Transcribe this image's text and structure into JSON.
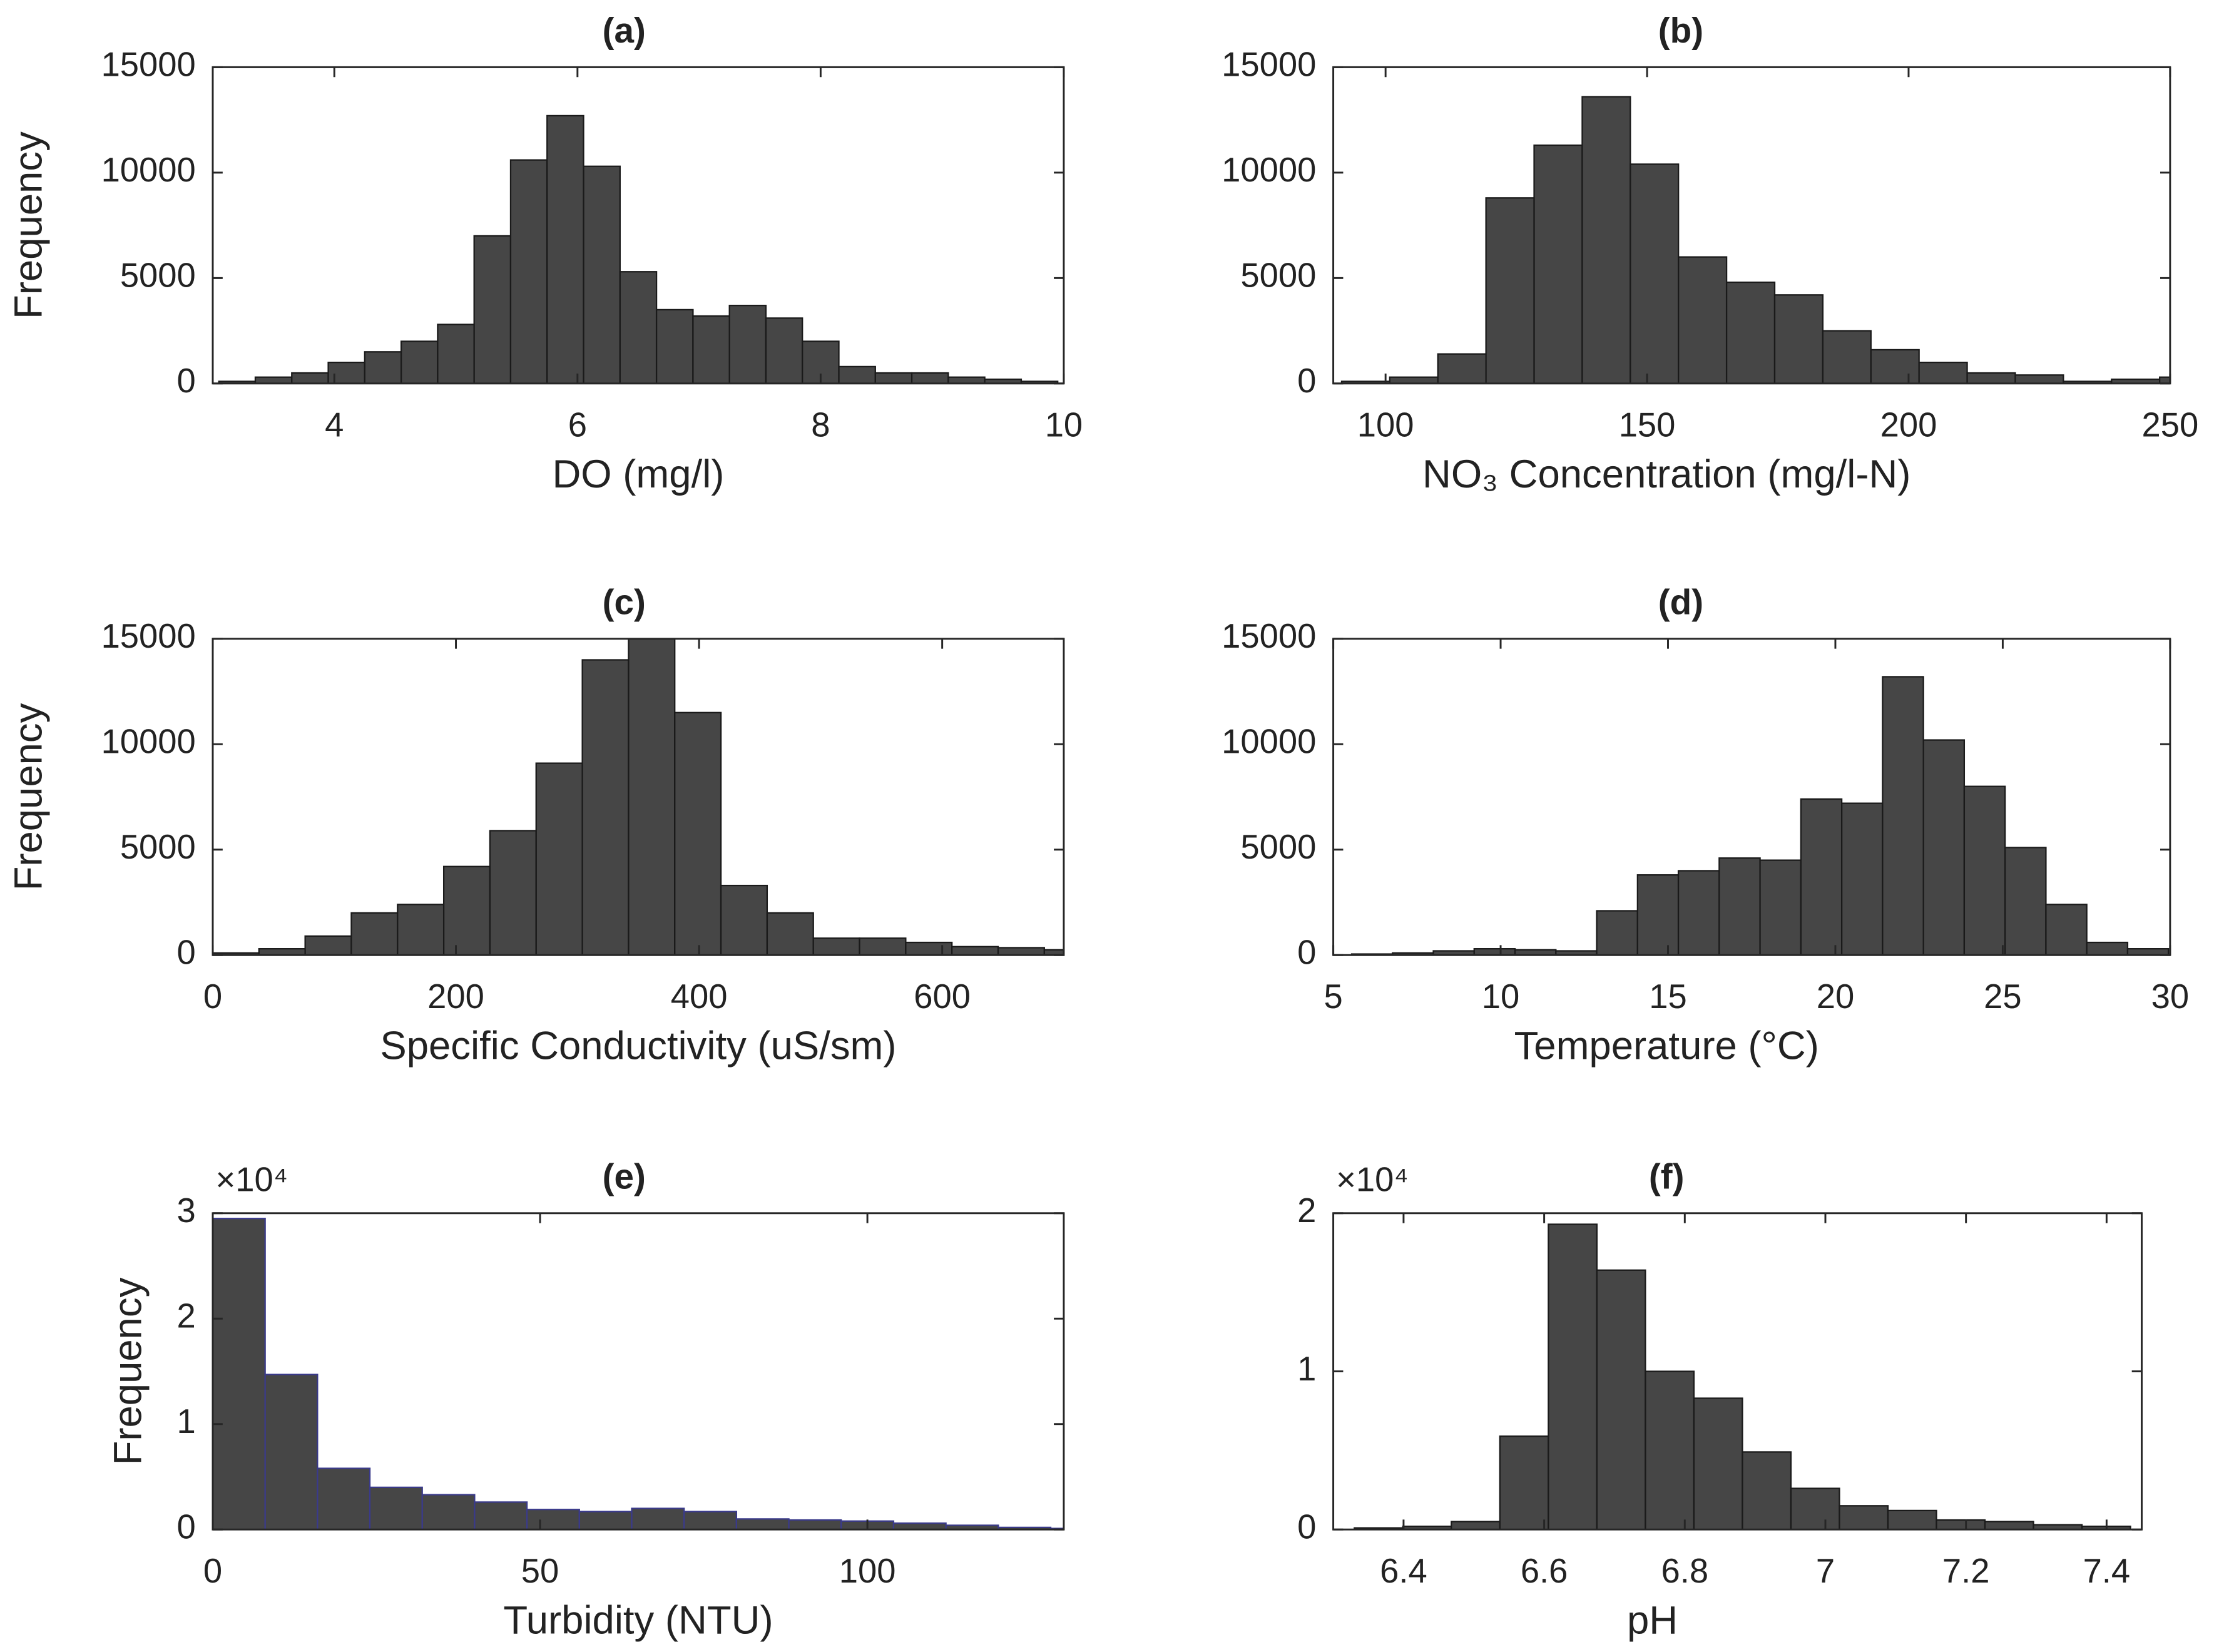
{
  "chart_data": [
    {
      "type": "histogram",
      "title": "(a)",
      "xlabel": "DO (mg/l)",
      "ylabel": "Frequency",
      "color": "#464646",
      "edge": "#1a1a1a",
      "bins": [
        3.05,
        3.35,
        3.65,
        3.95,
        4.25,
        4.55,
        4.85,
        5.15,
        5.45,
        5.75,
        6.05,
        6.35,
        6.65,
        6.95,
        7.25,
        7.55,
        7.85,
        8.15,
        8.45,
        8.75,
        9.05,
        9.35,
        9.65,
        9.95
      ],
      "values": [
        100,
        300,
        500,
        1000,
        1500,
        2000,
        2800,
        7000,
        10600,
        12700,
        10300,
        5300,
        3500,
        3200,
        3700,
        3100,
        2000,
        800,
        500,
        500,
        300,
        200,
        100
      ],
      "xlim": [
        3,
        10
      ],
      "xticks": [
        4,
        6,
        8,
        10
      ],
      "ylim": [
        0,
        15000
      ],
      "yticks": [
        0,
        5000,
        10000,
        15000
      ]
    },
    {
      "type": "histogram",
      "title": "(b)",
      "xlabel": "NO₃ Concentration (mg/l-N)",
      "color": "#464646",
      "edge": "#1a1a1a",
      "bins": [
        91.6,
        100.8,
        110,
        119.2,
        128.4,
        137.6,
        146.8,
        156,
        165.2,
        174.4,
        183.6,
        192.8,
        202,
        211.2,
        220.4,
        229.6,
        238.8,
        248,
        257.2
      ],
      "values": [
        100,
        300,
        1400,
        8800,
        11300,
        13600,
        10400,
        6000,
        4800,
        4200,
        2500,
        1600,
        1000,
        500,
        400,
        100,
        200,
        300
      ],
      "xlim": [
        90,
        250
      ],
      "xticks": [
        100,
        150,
        200,
        250
      ],
      "ylim": [
        0,
        15000
      ],
      "yticks": [
        0,
        5000,
        10000,
        15000
      ]
    },
    {
      "type": "histogram",
      "title": "(c)",
      "xlabel": "Specific Conductivity (uS/sm)",
      "ylabel": "Frequency",
      "color": "#464646",
      "edge": "#1a1a1a",
      "bins": [
        0,
        38,
        76,
        114,
        152,
        190,
        228,
        266,
        304,
        342,
        380,
        418,
        456,
        494,
        532,
        570,
        608,
        646,
        684,
        722
      ],
      "values": [
        100,
        300,
        900,
        2000,
        2400,
        4200,
        5900,
        9100,
        14000,
        15000,
        11500,
        3300,
        2000,
        800,
        800,
        600,
        400,
        350,
        250
      ],
      "xlim": [
        0,
        700
      ],
      "xticks": [
        0,
        200,
        400,
        600
      ],
      "ylim": [
        0,
        15000
      ],
      "yticks": [
        0,
        5000,
        10000,
        15000
      ]
    },
    {
      "type": "histogram",
      "title": "(d)",
      "xlabel": "Temperature (°C)",
      "color": "#464646",
      "edge": "#1a1a1a",
      "bins": [
        5.55,
        6.77,
        7.99,
        9.21,
        10.43,
        11.65,
        12.87,
        14.09,
        15.31,
        16.53,
        17.75,
        18.97,
        20.19,
        21.41,
        22.63,
        23.85,
        25.07,
        26.29,
        27.51,
        28.73,
        29.95
      ],
      "values": [
        50,
        100,
        200,
        300,
        250,
        200,
        2100,
        3800,
        4000,
        4600,
        4500,
        7400,
        7200,
        13200,
        10200,
        8000,
        5100,
        2400,
        600,
        300
      ],
      "xlim": [
        5,
        30
      ],
      "xticks": [
        5,
        10,
        15,
        20,
        25,
        30
      ],
      "ylim": [
        0,
        15000
      ],
      "yticks": [
        0,
        5000,
        10000,
        15000
      ]
    },
    {
      "type": "histogram",
      "title": "(e)",
      "xlabel": "Turbidity (NTU)",
      "ylabel": "Frequency",
      "multiplier": "×10⁴",
      "color": "#464646",
      "edge": "#3a3a8a",
      "bins": [
        0,
        8,
        16,
        24,
        32,
        40,
        48,
        56,
        64,
        72,
        80,
        88,
        96,
        104,
        112,
        120,
        128,
        136
      ],
      "values": [
        29500,
        14700,
        5800,
        4000,
        3300,
        2600,
        1900,
        1700,
        2000,
        1700,
        1000,
        900,
        800,
        600,
        400,
        200,
        100
      ],
      "xlim": [
        0,
        130
      ],
      "xticks": [
        0,
        50,
        100
      ],
      "ylim": [
        0,
        30000
      ],
      "yticks": [
        {
          "value": 0,
          "label": "0"
        },
        {
          "value": 10000,
          "label": "1"
        },
        {
          "value": 20000,
          "label": "2"
        },
        {
          "value": 30000,
          "label": "3"
        }
      ]
    },
    {
      "type": "histogram",
      "title": "(f)",
      "xlabel": "pH",
      "multiplier": "×10⁴",
      "color": "#464646",
      "edge": "#1a1a1a",
      "bins": [
        6.33,
        6.399,
        6.468,
        6.537,
        6.606,
        6.675,
        6.744,
        6.813,
        6.882,
        6.951,
        7.02,
        7.089,
        7.158,
        7.227,
        7.296,
        7.365,
        7.434
      ],
      "values": [
        100,
        200,
        500,
        5900,
        19300,
        16400,
        10000,
        8300,
        4900,
        2600,
        1500,
        1200,
        600,
        500,
        300,
        200
      ],
      "xlim": [
        6.3,
        7.45
      ],
      "xticks": [
        6.4,
        6.6,
        6.8,
        7,
        7.2,
        7.4
      ],
      "ylim": [
        0,
        20000
      ],
      "yticks": [
        {
          "value": 0,
          "label": "0"
        },
        {
          "value": 10000,
          "label": "1"
        },
        {
          "value": 20000,
          "label": "2"
        }
      ]
    }
  ]
}
